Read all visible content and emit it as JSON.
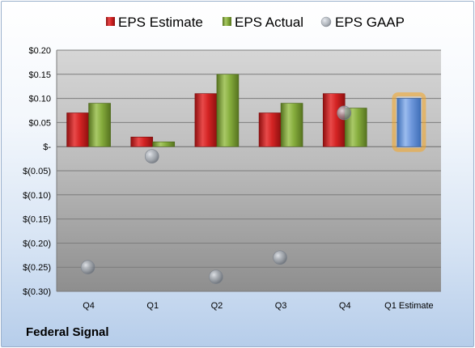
{
  "company": "Federal Signal",
  "colors": {
    "estimate": "#cc1f1f",
    "actual": "#80a63a",
    "gaap": "#9aa3ad",
    "future_estimate": "#6c97d8",
    "highlight": "#f5a623"
  },
  "chart_data": {
    "type": "bar",
    "categories": [
      "Q4",
      "Q1",
      "Q2",
      "Q3",
      "Q4",
      "Q1 Estimate"
    ],
    "series": [
      {
        "name": "EPS Estimate",
        "values": [
          0.07,
          0.02,
          0.11,
          0.07,
          0.11,
          null
        ]
      },
      {
        "name": "EPS Actual",
        "values": [
          0.09,
          0.01,
          0.15,
          0.09,
          0.08,
          0.1
        ]
      },
      {
        "name": "EPS GAAP",
        "values": [
          -0.25,
          -0.02,
          -0.27,
          -0.23,
          0.07,
          null
        ]
      }
    ],
    "ylim": [
      -0.3,
      0.2
    ],
    "yticks": [
      {
        "value": 0.2,
        "label": "$0.20"
      },
      {
        "value": 0.15,
        "label": "$0.15"
      },
      {
        "value": 0.1,
        "label": "$0.10"
      },
      {
        "value": 0.05,
        "label": "$0.05"
      },
      {
        "value": 0.0,
        "label": "$-"
      },
      {
        "value": -0.05,
        "label": "$(0.05)"
      },
      {
        "value": -0.1,
        "label": "$(0.10)"
      },
      {
        "value": -0.15,
        "label": "$(0.15)"
      },
      {
        "value": -0.2,
        "label": "$(0.20)"
      },
      {
        "value": -0.25,
        "label": "$(0.25)"
      },
      {
        "value": -0.3,
        "label": "$(0.30)"
      }
    ],
    "legend_position": "top",
    "grid": true
  }
}
